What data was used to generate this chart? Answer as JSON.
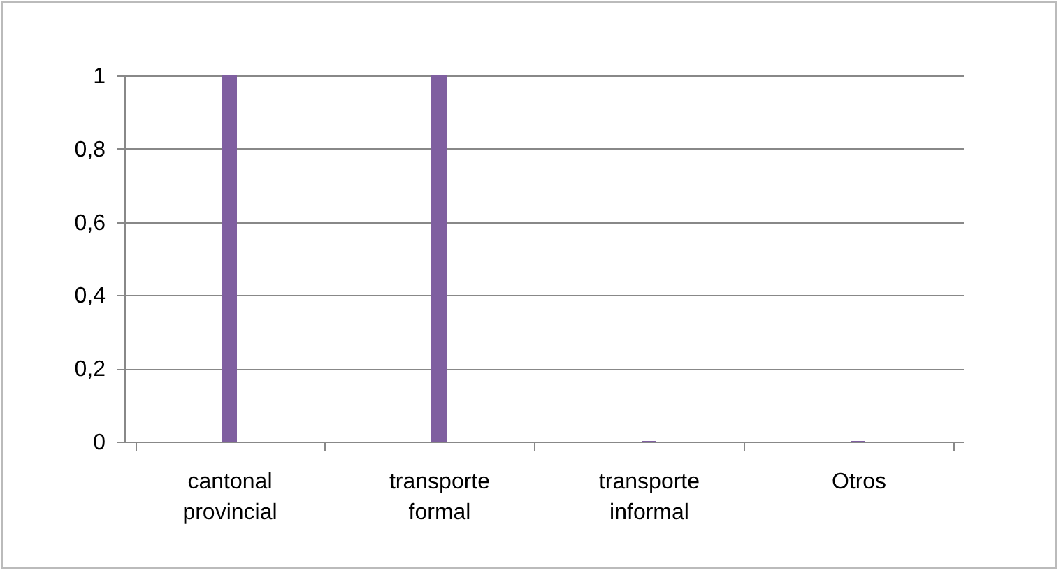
{
  "chart_data": {
    "type": "bar",
    "categories": [
      "cantonal provincial",
      "transporte formal",
      "transporte informal",
      "Otros"
    ],
    "values": [
      1,
      1,
      0,
      0
    ],
    "color": "#7f5fa0",
    "ylim": [
      0,
      1
    ],
    "yticks": [
      {
        "value": 0,
        "label": "0"
      },
      {
        "value": 0.2,
        "label": "0,2"
      },
      {
        "value": 0.4,
        "label": "0,4"
      },
      {
        "value": 0.6,
        "label": "0,6"
      },
      {
        "value": 0.8,
        "label": "0,8"
      },
      {
        "value": 1,
        "label": "1"
      }
    ],
    "grid": "y"
  }
}
